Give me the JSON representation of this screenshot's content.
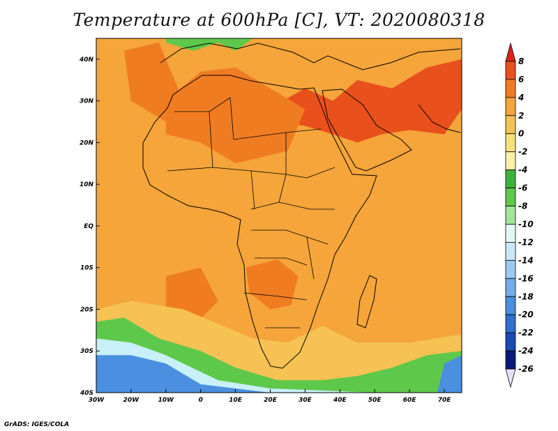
{
  "title": "Temperature at 600hPa [C], VT: 2020080318",
  "credit": "GrADS: IGES/COLA",
  "map": {
    "lon_range": [
      -30,
      75
    ],
    "lat_range": [
      -40,
      45
    ],
    "lon_ticks": [
      {
        "value": -30,
        "label": "30W"
      },
      {
        "value": -20,
        "label": "20W"
      },
      {
        "value": -10,
        "label": "10W"
      },
      {
        "value": 0,
        "label": "0"
      },
      {
        "value": 10,
        "label": "10E"
      },
      {
        "value": 20,
        "label": "20E"
      },
      {
        "value": 30,
        "label": "30E"
      },
      {
        "value": 40,
        "label": "40E"
      },
      {
        "value": 50,
        "label": "50E"
      },
      {
        "value": 60,
        "label": "60E"
      },
      {
        "value": 70,
        "label": "70E"
      }
    ],
    "lat_ticks": [
      {
        "value": 40,
        "label": "40N"
      },
      {
        "value": 30,
        "label": "30N"
      },
      {
        "value": 20,
        "label": "20N"
      },
      {
        "value": 10,
        "label": "10N"
      },
      {
        "value": 0,
        "label": "EQ"
      },
      {
        "value": -10,
        "label": "10S"
      },
      {
        "value": -20,
        "label": "20S"
      },
      {
        "value": -30,
        "label": "30S"
      },
      {
        "value": -40,
        "label": "40S"
      }
    ],
    "background_color": "#f5a53a",
    "fields": [
      {
        "name": "hot-core",
        "color": "#e8501c",
        "poly": [
          [
            30,
            33
          ],
          [
            38,
            30
          ],
          [
            45,
            35
          ],
          [
            55,
            33
          ],
          [
            65,
            38
          ],
          [
            75,
            40
          ],
          [
            75,
            28
          ],
          [
            70,
            22
          ],
          [
            60,
            23
          ],
          [
            52,
            22
          ],
          [
            45,
            20
          ],
          [
            38,
            22
          ],
          [
            30,
            24
          ],
          [
            22,
            25
          ],
          [
            18,
            22
          ],
          [
            15,
            26
          ]
        ]
      },
      {
        "name": "warm-sahara",
        "color": "#f07c22",
        "poly": [
          [
            -10,
            30
          ],
          [
            0,
            37
          ],
          [
            10,
            38
          ],
          [
            20,
            33
          ],
          [
            30,
            28
          ],
          [
            25,
            18
          ],
          [
            10,
            15
          ],
          [
            0,
            20
          ],
          [
            -10,
            22
          ]
        ]
      },
      {
        "name": "warm-atlantic-north",
        "color": "#f07c22",
        "poly": [
          [
            -22,
            42
          ],
          [
            -12,
            44
          ],
          [
            -6,
            32
          ],
          [
            -10,
            25
          ],
          [
            -20,
            30
          ]
        ]
      },
      {
        "name": "warm-southern-africa",
        "color": "#f07c22",
        "poly": [
          [
            13,
            -10
          ],
          [
            22,
            -8
          ],
          [
            28,
            -12
          ],
          [
            26,
            -19
          ],
          [
            20,
            -20
          ],
          [
            14,
            -16
          ]
        ]
      },
      {
        "name": "warm-atlantic-south",
        "color": "#f07c22",
        "poly": [
          [
            -10,
            -12
          ],
          [
            0,
            -10
          ],
          [
            5,
            -18
          ],
          [
            -2,
            -24
          ],
          [
            -10,
            -20
          ]
        ]
      },
      {
        "name": "cool-south-band",
        "color": "#f6c254",
        "poly": [
          [
            -30,
            -20
          ],
          [
            -20,
            -18
          ],
          [
            -5,
            -20
          ],
          [
            15,
            -27
          ],
          [
            25,
            -28
          ],
          [
            35,
            -24
          ],
          [
            45,
            -28
          ],
          [
            60,
            -28
          ],
          [
            75,
            -26
          ],
          [
            75,
            -40
          ],
          [
            -30,
            -40
          ]
        ]
      },
      {
        "name": "cold-green",
        "color": "#5ec84a",
        "poly": [
          [
            -30,
            -23
          ],
          [
            -22,
            -22
          ],
          [
            -12,
            -27
          ],
          [
            0,
            -30
          ],
          [
            10,
            -34
          ],
          [
            22,
            -37
          ],
          [
            35,
            -37
          ],
          [
            45,
            -36
          ],
          [
            55,
            -34
          ],
          [
            65,
            -31
          ],
          [
            75,
            -30
          ],
          [
            75,
            -40
          ],
          [
            -30,
            -40
          ]
        ]
      },
      {
        "name": "cold-light",
        "color": "#c8f0f8",
        "poly": [
          [
            -30,
            -27
          ],
          [
            -20,
            -28
          ],
          [
            -10,
            -31
          ],
          [
            5,
            -37
          ],
          [
            20,
            -39
          ],
          [
            50,
            -40
          ],
          [
            -30,
            -40
          ]
        ]
      },
      {
        "name": "cold-blue",
        "color": "#4a8fe0",
        "poly": [
          [
            -30,
            -31
          ],
          [
            -20,
            -31
          ],
          [
            -10,
            -33
          ],
          [
            0,
            -38
          ],
          [
            20,
            -40
          ],
          [
            -30,
            -40
          ]
        ]
      },
      {
        "name": "cold-blue-east",
        "color": "#4a8fe0",
        "poly": [
          [
            68,
            -40
          ],
          [
            70,
            -33
          ],
          [
            75,
            -31
          ],
          [
            75,
            -40
          ]
        ]
      },
      {
        "name": "mediterranean-green",
        "color": "#5ec84a",
        "poly": [
          [
            -10,
            44
          ],
          [
            -2,
            42
          ],
          [
            5,
            44
          ],
          [
            10,
            42
          ],
          [
            15,
            45
          ],
          [
            -10,
            45
          ]
        ]
      }
    ]
  },
  "colorbar": {
    "labels": [
      "8",
      "6",
      "4",
      "2",
      "0",
      "-2",
      "-4",
      "-6",
      "-8",
      "-10",
      "-12",
      "-14",
      "-16",
      "-18",
      "-20",
      "-22",
      "-24",
      "-26"
    ],
    "colors": [
      "#d9241b",
      "#e8501c",
      "#f07c22",
      "#f5a53a",
      "#f6c254",
      "#f6e07a",
      "#faf0a8",
      "#3cb43c",
      "#5ec84a",
      "#a2e49a",
      "#e2f8f4",
      "#c8e8f8",
      "#9ccaf0",
      "#74acec",
      "#4a8fe0",
      "#2e6fd0",
      "#1a4ab4",
      "#0a1a78",
      "#e0e0f8"
    ]
  }
}
